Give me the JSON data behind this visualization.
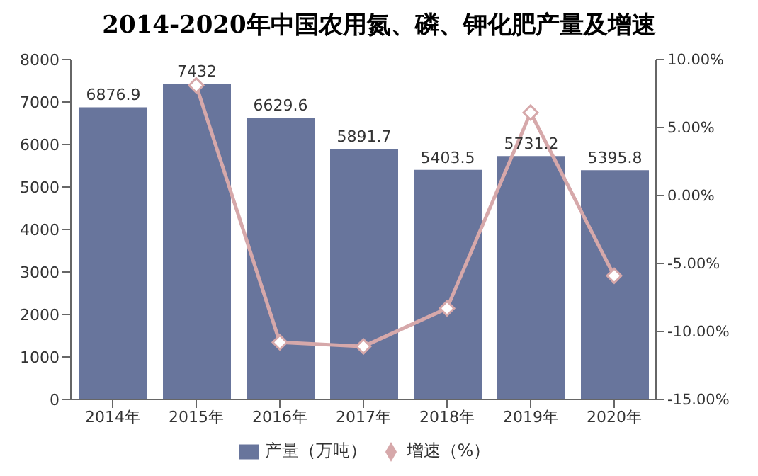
{
  "chart_data": {
    "type": "bar",
    "title": "2014-2020年中国农用氮、磷、钾化肥产量及增速",
    "categories": [
      "2014年",
      "2015年",
      "2016年",
      "2017年",
      "2018年",
      "2019年",
      "2020年"
    ],
    "series": [
      {
        "name": "产量（万吨）",
        "color": "#68759c",
        "values": [
          6876.9,
          7432,
          6629.6,
          5891.7,
          5403.5,
          5731.2,
          5395.8
        ],
        "value_labels": [
          "6876.9",
          "7432",
          "6629.6",
          "5891.7",
          "5403.5",
          "5731.2",
          "5395.8"
        ]
      },
      {
        "name": "增速（%）",
        "type": "line",
        "axis": "y2",
        "color": "#d6a8aa",
        "marker": "diamond",
        "values": [
          null,
          8.1,
          -10.8,
          -11.1,
          -8.3,
          6.1,
          -5.9
        ]
      }
    ],
    "ylim": [
      0,
      8000
    ],
    "yticks": [
      0,
      1000,
      2000,
      3000,
      4000,
      5000,
      6000,
      7000,
      8000
    ],
    "y2lim": [
      -15,
      10
    ],
    "y2ticks": [
      {
        "value": -15,
        "label": "-15.00%"
      },
      {
        "value": -10,
        "label": "-10.00%"
      },
      {
        "value": -5,
        "label": "-5.00%"
      },
      {
        "value": 0,
        "label": "0.00%"
      },
      {
        "value": 5,
        "label": "5.00%"
      },
      {
        "value": 10,
        "label": "10.00%"
      }
    ],
    "grid": false,
    "legend": "bottom"
  }
}
